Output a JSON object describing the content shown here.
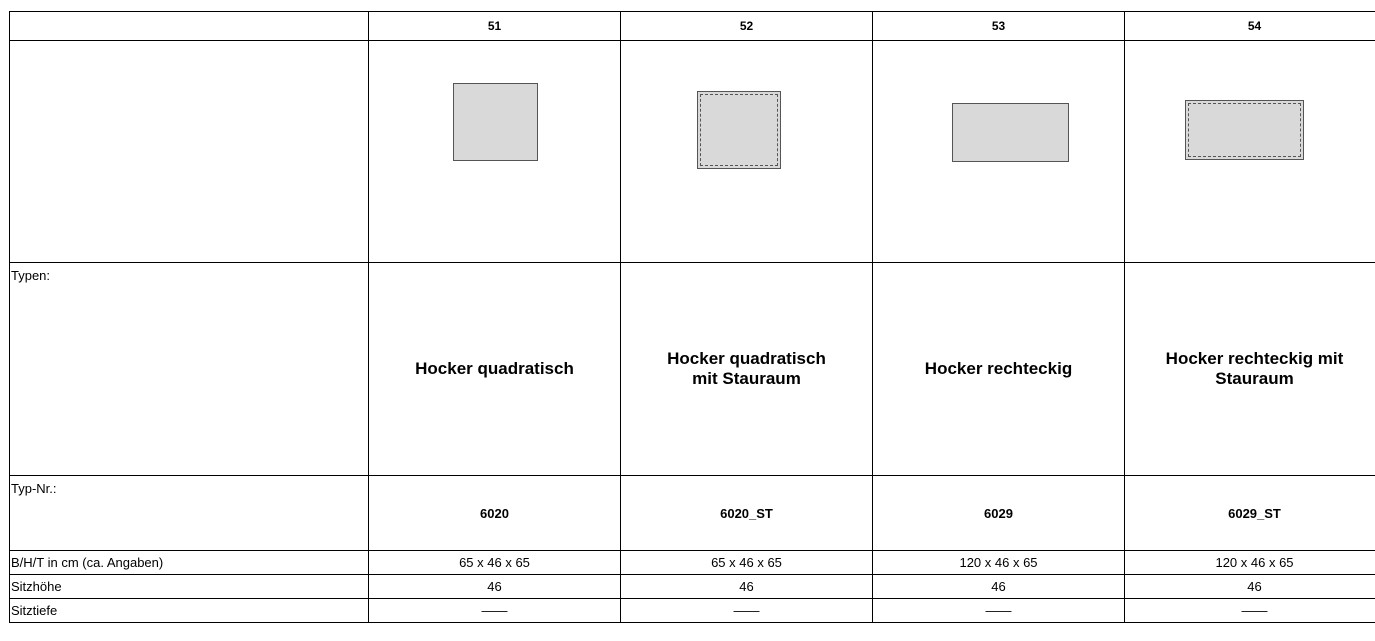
{
  "columns": [
    {
      "num": "51",
      "type_name": "Hocker quadratisch",
      "typ_nr": "6020",
      "dimensions": "65 x 46 x 65",
      "sitzhoehe": "46",
      "sitztiefe": "——",
      "shape": "square",
      "storage": false
    },
    {
      "num": "52",
      "type_name": "Hocker quadratisch mit Stauraum",
      "typ_nr": "6020_ST",
      "dimensions": "65 x 46 x 65",
      "sitzhoehe": "46",
      "sitztiefe": "——",
      "shape": "square",
      "storage": true
    },
    {
      "num": "53",
      "type_name": "Hocker rechteckig",
      "typ_nr": "6029",
      "dimensions": "120 x 46 x 65",
      "sitzhoehe": "46",
      "sitztiefe": "——",
      "shape": "rectangle",
      "storage": false
    },
    {
      "num": "54",
      "type_name": "Hocker rechteckig mit Stauraum",
      "typ_nr": "6029_ST",
      "dimensions": "120 x 46 x 65",
      "sitzhoehe": "46",
      "sitztiefe": "——",
      "shape": "rectangle",
      "storage": true
    }
  ],
  "labels": {
    "typen": "Typen:",
    "typ_nr": "Typ-Nr.:",
    "dimensions": "B/H/T in cm (ca. Angaben)",
    "sitzhoehe": "Sitzhöhe",
    "sitztiefe": "Sitztiefe"
  },
  "colors": {
    "shape_fill": "#d9d9d9",
    "border": "#000000"
  }
}
